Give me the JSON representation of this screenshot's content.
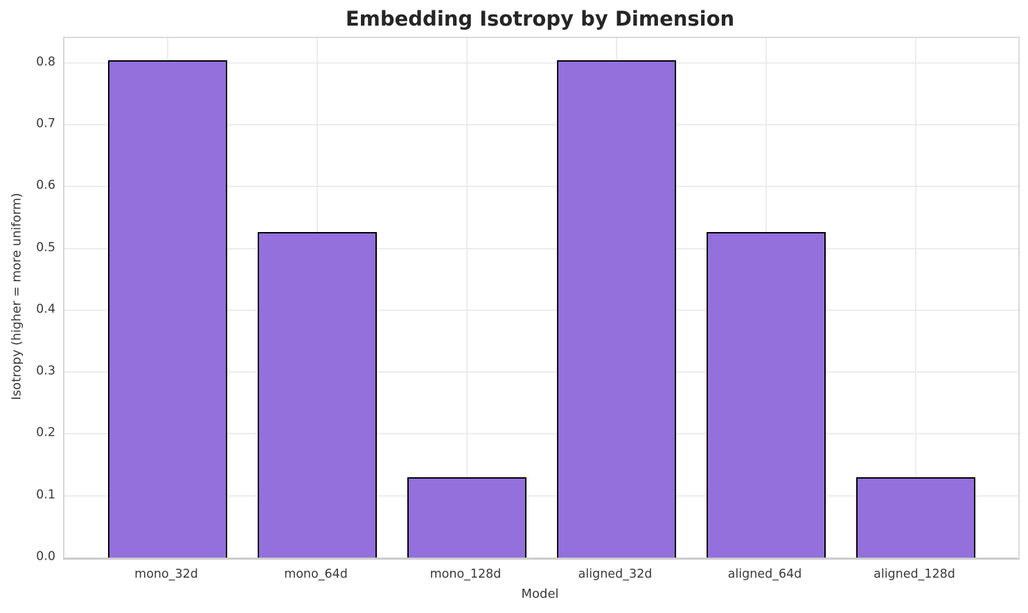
{
  "chart_data": {
    "type": "bar",
    "title": "Embedding Isotropy by Dimension",
    "xlabel": "Model",
    "ylabel": "Isotropy (higher = more uniform)",
    "categories": [
      "mono_32d",
      "mono_64d",
      "mono_128d",
      "aligned_32d",
      "aligned_64d",
      "aligned_128d"
    ],
    "values": [
      0.805,
      0.527,
      0.13,
      0.805,
      0.527,
      0.13
    ],
    "yticks": [
      0.0,
      0.1,
      0.2,
      0.3,
      0.4,
      0.5,
      0.6,
      0.7,
      0.8
    ],
    "ylim": [
      0,
      0.84
    ],
    "grid": true,
    "legend": null,
    "bar_color": "#9370DB",
    "bar_edge_color": "#000000",
    "grid_color": "#ececec",
    "text_color": "#3a3a3a"
  }
}
